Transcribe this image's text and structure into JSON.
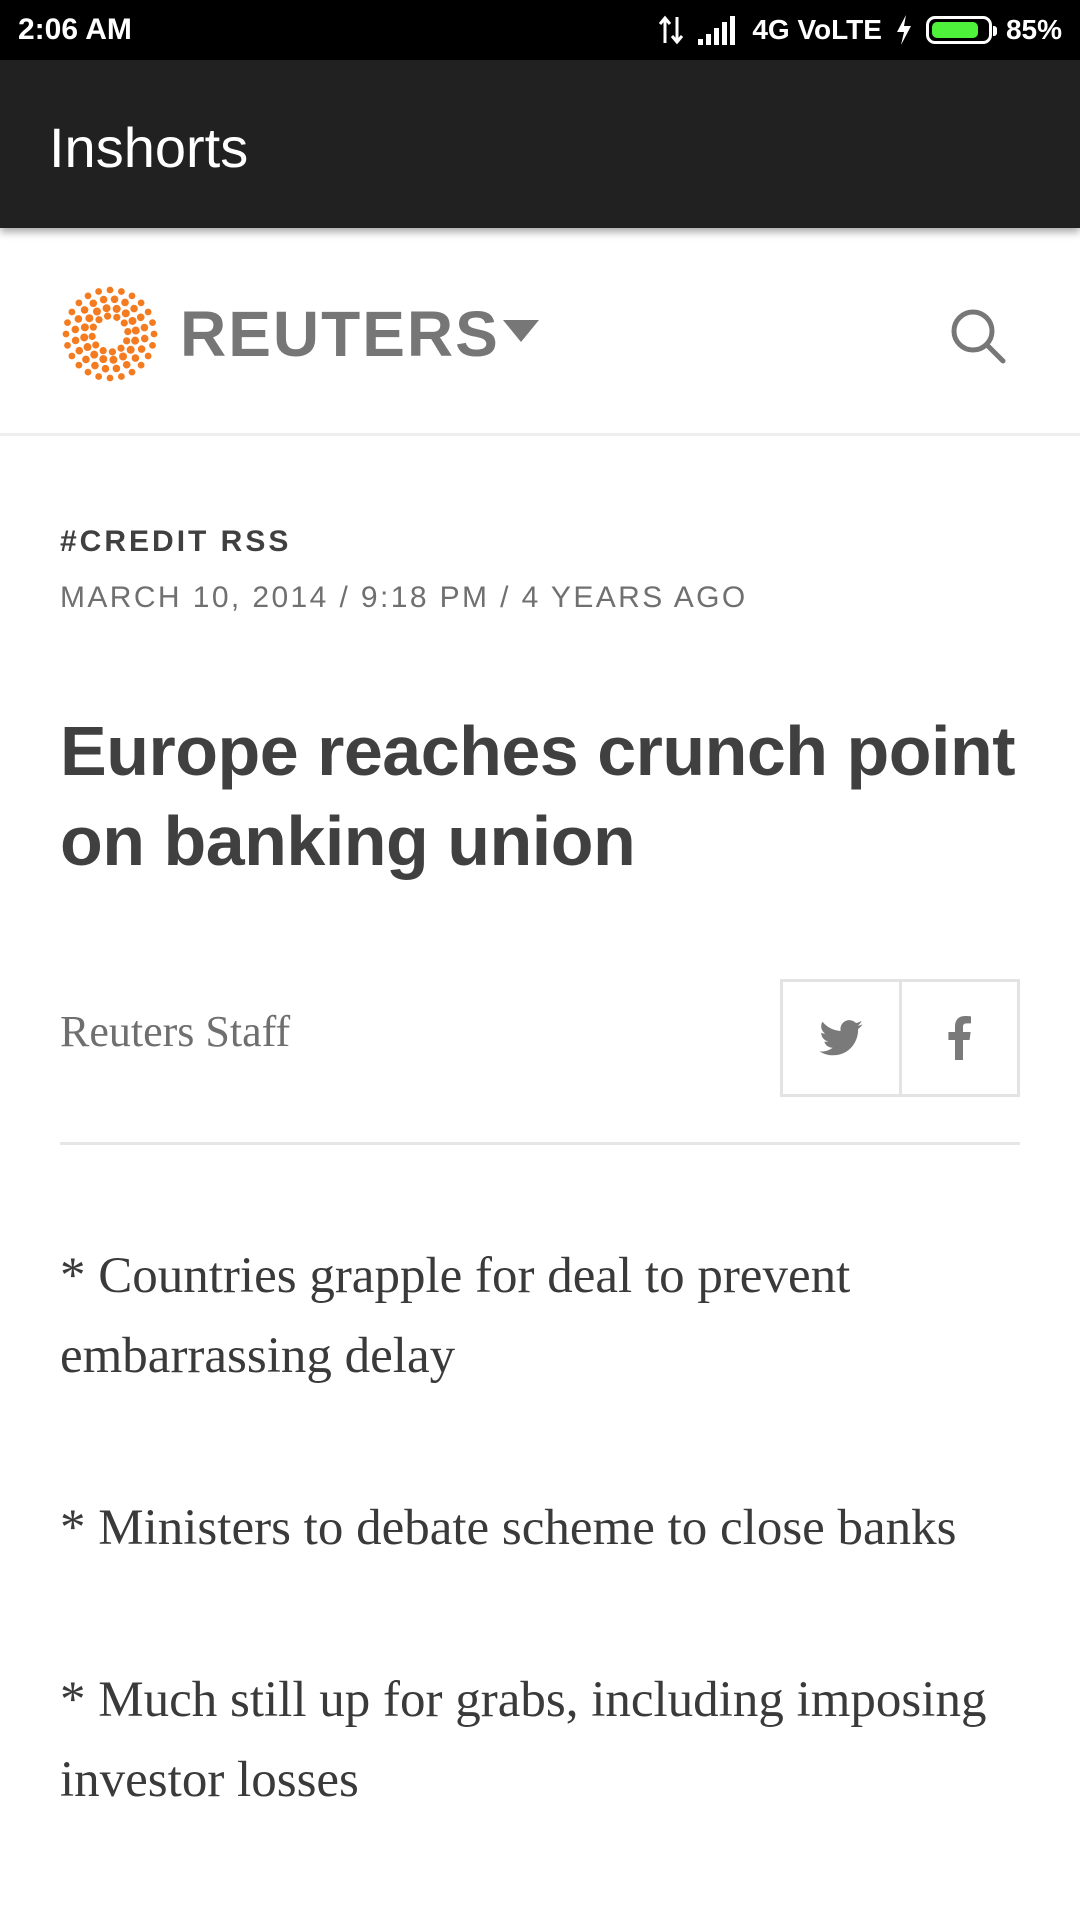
{
  "status_bar": {
    "time": "2:06 AM",
    "network": "4G VoLTE",
    "battery_percent": "85%",
    "battery_level": 0.85,
    "battery_color": "#4ef23a",
    "icons": [
      "data-transfer-icon",
      "signal-icon",
      "charging-icon",
      "battery-icon"
    ]
  },
  "app_bar": {
    "title": "Inshorts",
    "background": "#212121"
  },
  "site_header": {
    "logo_text": "REUTERS",
    "logo_color": "#f47b20",
    "icons": [
      "reuters-logo-icon",
      "dropdown-icon",
      "search-icon"
    ]
  },
  "article": {
    "category": "#CREDIT RSS",
    "dateline": "MARCH 10, 2014 / 9:18 PM / 4 YEARS AGO",
    "headline": "Europe reaches crunch point on banking union",
    "byline": "Reuters Staff",
    "share_icons": [
      "twitter-icon",
      "facebook-icon"
    ],
    "paragraphs": [
      "* Countries grapple for deal to prevent embarrassing delay",
      "* Ministers to debate scheme to close banks",
      "* Much still up for grabs, including imposing investor losses"
    ]
  }
}
